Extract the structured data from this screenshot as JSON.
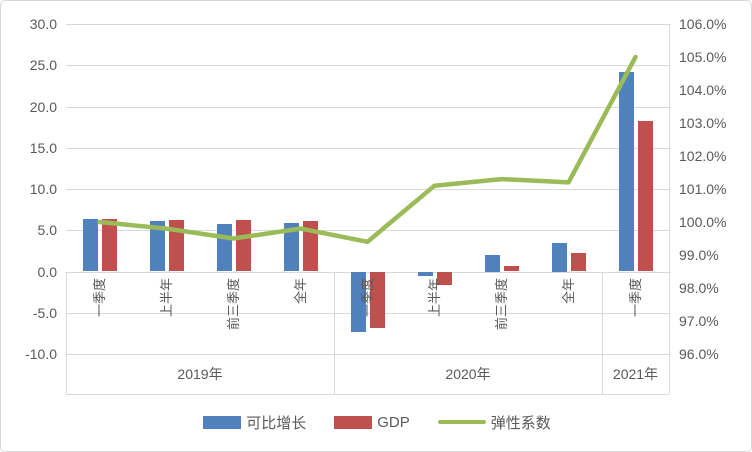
{
  "chart_data": {
    "type": "combo (bar + line)",
    "title": "",
    "categories": [
      "一季度",
      "上半年",
      "前三季度",
      "全年",
      "一季度",
      "上半年",
      "前三季度",
      "全年",
      "一季度"
    ],
    "category_groups": [
      {
        "label": "2019年",
        "span": 4
      },
      {
        "label": "2020年",
        "span": 4
      },
      {
        "label": "2021年",
        "span": 1
      }
    ],
    "series": [
      {
        "name": "可比增长",
        "type": "bar",
        "axis": "left",
        "color": "#4F81BD",
        "values": [
          6.4,
          6.1,
          5.7,
          5.9,
          -7.3,
          -0.5,
          2.0,
          3.5,
          24.2
        ]
      },
      {
        "name": "GDP",
        "type": "bar",
        "axis": "left",
        "color": "#C0504D",
        "values": [
          6.4,
          6.3,
          6.2,
          6.1,
          -6.8,
          -1.6,
          0.7,
          2.3,
          18.3
        ]
      },
      {
        "name": "弹性系数",
        "type": "line",
        "axis": "right",
        "color": "#9BBB59",
        "unit": "%",
        "values": [
          100.0,
          99.8,
          99.5,
          99.8,
          99.4,
          101.1,
          101.3,
          101.2,
          105.0
        ]
      }
    ],
    "left_axis": {
      "min": -10,
      "max": 30,
      "step": 5,
      "ticks": [
        "30.0",
        "25.0",
        "20.0",
        "15.0",
        "10.0",
        "5.0",
        "0.0",
        "-5.0",
        "-10.0"
      ]
    },
    "right_axis": {
      "min": 96,
      "max": 106,
      "step": 1,
      "ticks": [
        "106.0%",
        "105.0%",
        "104.0%",
        "103.0%",
        "102.0%",
        "101.0%",
        "100.0%",
        "99.0%",
        "98.0%",
        "97.0%",
        "96.0%"
      ]
    },
    "grid": true,
    "legend_position": "bottom",
    "colors": {
      "gridline": "#D9D9D9",
      "axis_text": "#595959",
      "border": "#D9D9D9",
      "background": "#FFFFFF"
    }
  }
}
